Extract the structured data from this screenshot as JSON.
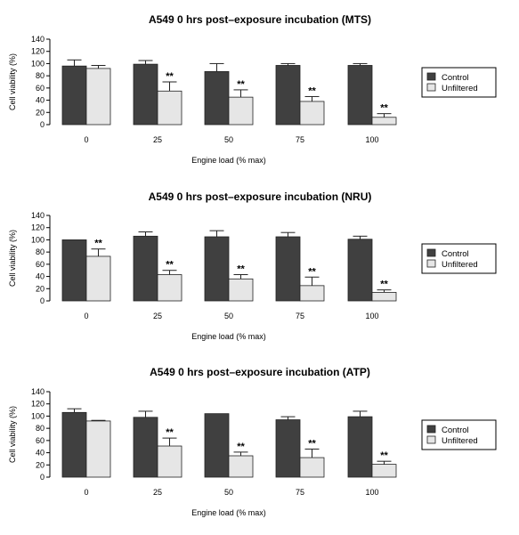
{
  "chart_data": [
    {
      "type": "bar",
      "title": "A549 0 hrs post–exposure incubation (MTS)",
      "xlabel": "Engine load (% max)",
      "ylabel": "Cell viability (%)",
      "ylim": [
        0,
        140
      ],
      "yticks": [
        "0",
        "20",
        "40",
        "60",
        "80",
        "100",
        "120",
        "140"
      ],
      "categories": [
        "0",
        "25",
        "50",
        "75",
        "100"
      ],
      "series": [
        {
          "name": "Control",
          "color": "#404040",
          "values": [
            96,
            99,
            87,
            97,
            97
          ],
          "errors": [
            10,
            6,
            13,
            3,
            3
          ]
        },
        {
          "name": "Unfiltered",
          "color": "#e6e6e6",
          "values": [
            92,
            55,
            45,
            38,
            12
          ],
          "errors": [
            5,
            15,
            12,
            8,
            6
          ]
        }
      ],
      "significance": [
        "",
        "**",
        "**",
        "**",
        "**"
      ],
      "legend_position": "right"
    },
    {
      "type": "bar",
      "title": "A549 0 hrs post–exposure incubation (NRU)",
      "xlabel": "Engine load (% max)",
      "ylabel": "Cell viability (%)",
      "ylim": [
        0,
        140
      ],
      "yticks": [
        "0",
        "20",
        "40",
        "60",
        "80",
        "100",
        "120",
        "140"
      ],
      "categories": [
        "0",
        "25",
        "50",
        "75",
        "100"
      ],
      "series": [
        {
          "name": "Control",
          "color": "#404040",
          "values": [
            100,
            106,
            105,
            105,
            101
          ],
          "errors": [
            0,
            7,
            10,
            7,
            5
          ]
        },
        {
          "name": "Unfiltered",
          "color": "#e6e6e6",
          "values": [
            73,
            43,
            36,
            25,
            14
          ],
          "errors": [
            12,
            7,
            7,
            14,
            4
          ]
        }
      ],
      "significance": [
        "**",
        "**",
        "**",
        "**",
        "**"
      ],
      "legend_position": "right"
    },
    {
      "type": "bar",
      "title": "A549 0 hrs post–exposure incubation (ATP)",
      "xlabel": "Engine load (% max)",
      "ylabel": "Cell viability (%)",
      "ylim": [
        0,
        140
      ],
      "yticks": [
        "0",
        "20",
        "40",
        "60",
        "80",
        "100",
        "120",
        "140"
      ],
      "categories": [
        "0",
        "25",
        "50",
        "75",
        "100"
      ],
      "series": [
        {
          "name": "Control",
          "color": "#404040",
          "values": [
            106,
            98,
            104,
            94,
            99
          ],
          "errors": [
            6,
            10,
            0,
            5,
            9
          ]
        },
        {
          "name": "Unfiltered",
          "color": "#e6e6e6",
          "values": [
            92,
            51,
            35,
            32,
            21
          ],
          "errors": [
            1,
            13,
            6,
            14,
            5
          ]
        }
      ],
      "significance": [
        "",
        "**",
        "**",
        "**",
        "**"
      ],
      "legend_position": "right"
    }
  ]
}
